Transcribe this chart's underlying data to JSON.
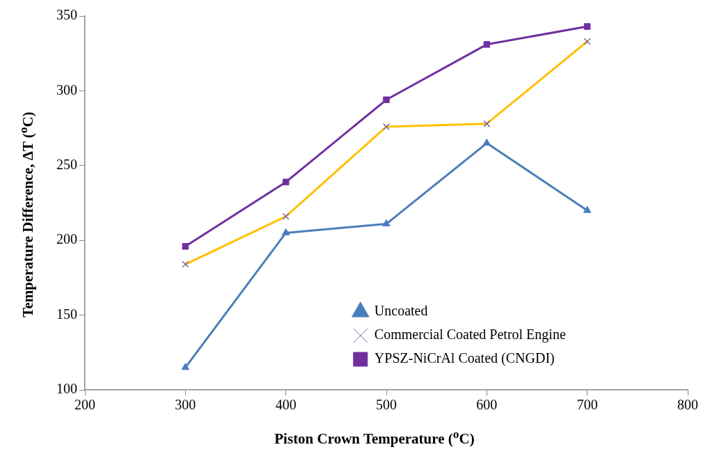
{
  "chart_data": {
    "type": "line",
    "xlabel": "Piston Crown Temperature ($^{o}$C)",
    "ylabel": "Temperature Difference, ΔT ($^{o}$C)",
    "x": [
      300,
      400,
      500,
      600,
      700
    ],
    "series": [
      {
        "name": "Uncoated",
        "color": "#4a7ebb",
        "marker": "triangle",
        "values": [
          115,
          205,
          211,
          265,
          220
        ]
      },
      {
        "name": "Commercial Coated Petrol Engine",
        "color": "#ffc000",
        "marker": "cross",
        "values": [
          184,
          216,
          276,
          278,
          333
        ]
      },
      {
        "name": "YPSZ-NiCrAl Coated (CNGDI)",
        "color": "#7030a0",
        "marker": "square",
        "values": [
          196,
          239,
          294,
          331,
          343
        ]
      }
    ],
    "xlim": [
      200,
      800
    ],
    "xticks": [
      200,
      300,
      400,
      500,
      600,
      700,
      800
    ],
    "ylim": [
      100,
      350
    ],
    "yticks": [
      100,
      150,
      200,
      250,
      300,
      350
    ],
    "grid": false,
    "legend": "bottom right",
    "line_style": "solid"
  }
}
